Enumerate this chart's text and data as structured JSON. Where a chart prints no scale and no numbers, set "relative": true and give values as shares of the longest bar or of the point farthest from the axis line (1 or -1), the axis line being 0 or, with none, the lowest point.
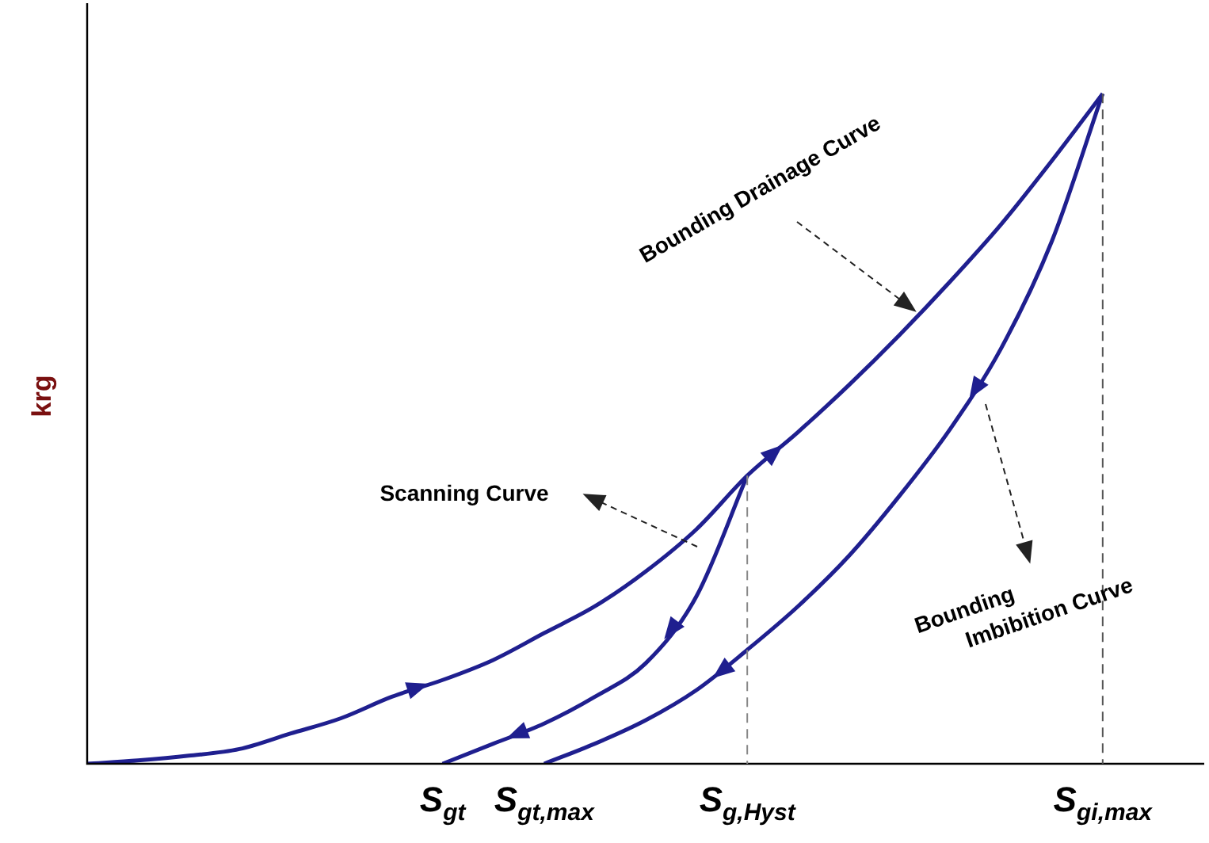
{
  "chart_data": {
    "type": "line",
    "relative": true,
    "ylabel": "krg",
    "categories": [
      null,
      null,
      null,
      null,
      null,
      null,
      null,
      "S$_{gt}$",
      null,
      "S$_{gt,max}$",
      null,
      null,
      null,
      "S$_{g,Hyst}$",
      null,
      null,
      null,
      null,
      null,
      null,
      "S$_{gi,max}$",
      null,
      null
    ],
    "series": [
      {
        "color": "#1f1f8f",
        "values": [
          0,
          0.005,
          0.012,
          0.022,
          0.045,
          0.068,
          0.1,
          0.125,
          0.155,
          0.195,
          0.235,
          0.287,
          0.35,
          0.43,
          0.495,
          0.565,
          0.64,
          0.72,
          0.805,
          0.9,
          1.0,
          null,
          null
        ]
      },
      {
        "color": "#1f1f8f",
        "values": [
          null,
          null,
          null,
          null,
          null,
          null,
          null,
          0,
          0.03,
          0.06,
          0.1,
          0.15,
          0.25,
          0.43,
          null,
          null,
          null,
          null,
          null,
          null,
          null,
          null,
          null
        ]
      },
      {
        "color": "#1f1f8f",
        "values": [
          null,
          null,
          null,
          null,
          null,
          null,
          null,
          null,
          null,
          0,
          0.03,
          0.065,
          0.11,
          0.17,
          0.235,
          0.31,
          0.4,
          0.5,
          0.62,
          0.78,
          1.0,
          null,
          null
        ]
      }
    ],
    "ref_lines": [
      {
        "axis": "x",
        "value": "S$_{g,Hyst}$",
        "color": "#888888",
        "line_style": "dashed"
      },
      {
        "axis": "x",
        "value": "S$_{gi,max}$",
        "color": "#555555",
        "line_style": "dashed"
      }
    ],
    "annotations": [
      "Bounding Drainage Curve",
      "Scanning Curve",
      "Bounding Imbibition Curve"
    ],
    "grid": false,
    "legend": false,
    "marker": "none",
    "line_style": "solid"
  }
}
